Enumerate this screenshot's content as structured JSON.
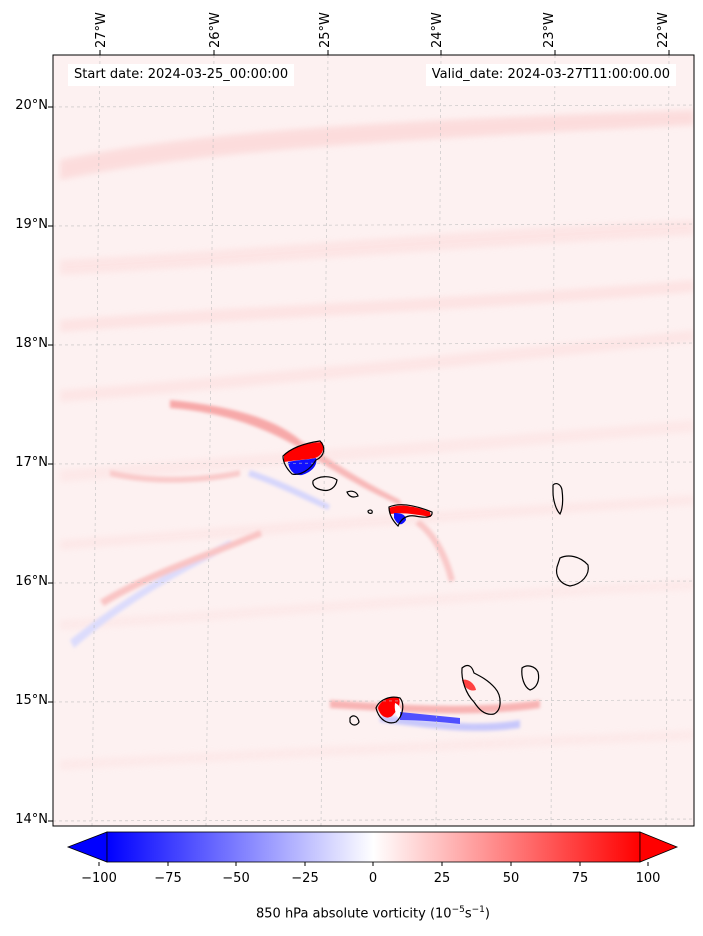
{
  "header": {
    "start_date": "Start date: 2024-03-25_00:00:00",
    "valid_date": "Valid_date: 2024-03-27T11:00:00.00"
  },
  "axes": {
    "lon_labels": [
      "27°W",
      "26°W",
      "25°W",
      "24°W",
      "23°W",
      "22°W"
    ],
    "lat_labels": [
      "20°N",
      "19°N",
      "18°N",
      "17°N",
      "16°N",
      "15°N",
      "14°N"
    ]
  },
  "colorbar": {
    "ticks": [
      "−100",
      "−75",
      "−50",
      "−25",
      "0",
      "25",
      "50",
      "75",
      "100"
    ],
    "label_prefix": "850 hPa absolute vorticity (10",
    "label_exp1": "−5",
    "label_mid": "s",
    "label_exp2": "−1",
    "label_suffix": ")",
    "min_color": "#0000ff",
    "mid_color": "#ffffff",
    "max_color": "#ff0000"
  },
  "map": {
    "field": "850 hPa absolute vorticity",
    "colormap": "bwr",
    "range": [
      -100,
      100
    ],
    "gridlines": true,
    "islands": [
      "Santo Antão",
      "São Vicente",
      "Santa Luzia",
      "São Nicolau",
      "Sal",
      "Boa Vista",
      "Brava",
      "Fogo",
      "Santiago",
      "Maio"
    ]
  }
}
